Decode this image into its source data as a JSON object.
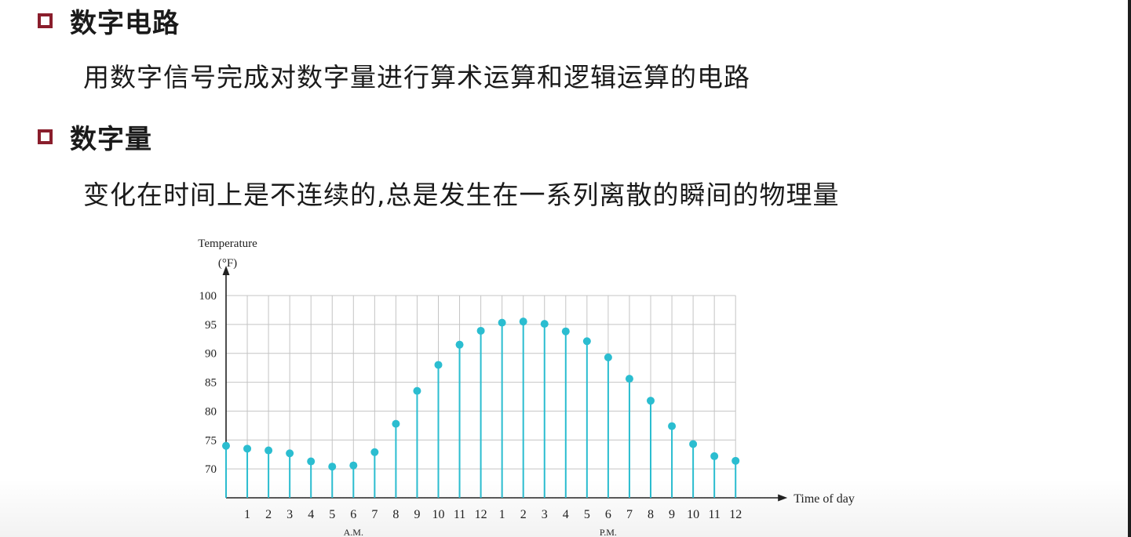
{
  "slide": {
    "heading1": "数字电路",
    "text1": "用数字信号完成对数字量进行算术运算和逻辑运算的电路",
    "heading2": "数字量",
    "text2": "变化在时间上是不连续的,总是发生在一系列离散的瞬间的物理量"
  },
  "colors": {
    "bullet": "#8a1e2c",
    "series": "#2bbdd0"
  },
  "chart_data": {
    "type": "scatter",
    "style": "stem",
    "ylabel_line1": "Temperature",
    "ylabel_line2": "(°F)",
    "xlabel": "Time of day",
    "yticks": [
      70,
      75,
      80,
      85,
      90,
      95,
      100
    ],
    "ylim": [
      65,
      100
    ],
    "grid": true,
    "x": [
      "12",
      "1",
      "2",
      "3",
      "4",
      "5",
      "6",
      "7",
      "8",
      "9",
      "10",
      "11",
      "12",
      "1",
      "2",
      "3",
      "4",
      "5",
      "6",
      "7",
      "8",
      "9",
      "10",
      "11",
      "12"
    ],
    "xtick_labels": [
      "",
      "1",
      "2",
      "3",
      "4",
      "5",
      "6",
      "7",
      "8",
      "9",
      "10",
      "11",
      "12",
      "1",
      "2",
      "3",
      "4",
      "5",
      "6",
      "7",
      "8",
      "9",
      "10",
      "11",
      "12"
    ],
    "period_labels": [
      "A.M.",
      "P.M."
    ],
    "values": [
      74,
      73.5,
      73.2,
      72.7,
      71.3,
      70.4,
      70.6,
      72.9,
      77.8,
      83.5,
      88,
      91.5,
      93.9,
      95.3,
      95.5,
      95.1,
      93.8,
      92.1,
      89.3,
      85.6,
      81.8,
      77.4,
      74.3,
      72.2,
      71.4
    ]
  }
}
